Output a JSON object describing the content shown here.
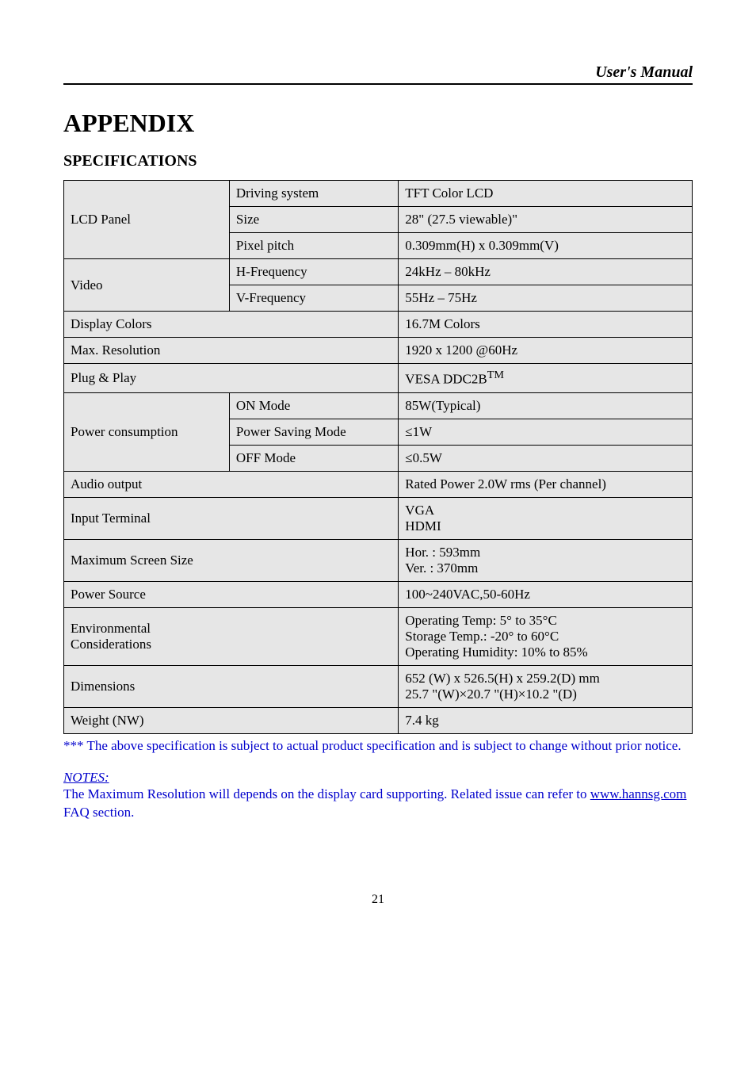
{
  "header": {
    "manual_title": "User's Manual"
  },
  "titles": {
    "appendix": "APPENDIX",
    "specifications": "SPECIFICATIONS"
  },
  "table": {
    "background_color": "#e6e6e6",
    "border_color": "#000000",
    "rows": {
      "lcd_panel_label": "LCD Panel",
      "driving_system_label": "Driving system",
      "driving_system_value": "TFT Color LCD",
      "size_label": "Size",
      "size_value": "28\" (27.5 viewable)\"",
      "pixel_pitch_label": "Pixel pitch",
      "pixel_pitch_value": "0.309mm(H) x 0.309mm(V)",
      "video_label": "Video",
      "h_freq_label": "H-Frequency",
      "h_freq_value": "24kHz – 80kHz",
      "v_freq_label": "V-Frequency",
      "v_freq_value": "55Hz – 75Hz",
      "display_colors_label": "Display Colors",
      "display_colors_value": "16.7M Colors",
      "max_res_label": "Max. Resolution",
      "max_res_value": "1920 x 1200 @60Hz",
      "plug_play_label": "Plug & Play",
      "plug_play_value_prefix": "VESA DDC2B",
      "plug_play_value_sup": "TM",
      "power_consumption_label": "Power consumption",
      "on_mode_label": "ON Mode",
      "on_mode_value": "85W(Typical)",
      "saving_mode_label": "Power Saving Mode",
      "saving_mode_value": "≤1W",
      "off_mode_label": "OFF Mode",
      "off_mode_value": "≤0.5W",
      "audio_output_label": "Audio output",
      "audio_output_value": "Rated Power 2.0W rms (Per channel)",
      "input_terminal_label": "Input Terminal",
      "input_terminal_value": "VGA\nHDMI",
      "max_screen_label": "Maximum Screen Size",
      "max_screen_value": "Hor. : 593mm\nVer. : 370mm",
      "power_source_label": "Power Source",
      "power_source_value": "100~240VAC,50-60Hz",
      "env_label": "Environmental\nConsiderations",
      "env_value": "Operating Temp: 5° to 35°C\nStorage Temp.: -20° to 60°C\nOperating Humidity: 10% to 85%",
      "dimensions_label": "Dimensions",
      "dimensions_value": "652 (W) x 526.5(H) x 259.2(D) mm\n25.7 \"(W)×20.7 \"(H)×10.2 \"(D)",
      "weight_label": "Weight (NW)",
      "weight_value": "7.4 kg"
    }
  },
  "footnote": "*** The above specification is subject to actual product specification and is subject to change without prior notice.",
  "notes": {
    "label": "NOTES:",
    "before_link": "The Maximum Resolution will depends on the display card supporting. Related issue can refer to ",
    "link_text": "www.hannsg.com",
    "after_link": " FAQ section."
  },
  "page_number": "21",
  "colors": {
    "link_blue": "#0000cc"
  }
}
